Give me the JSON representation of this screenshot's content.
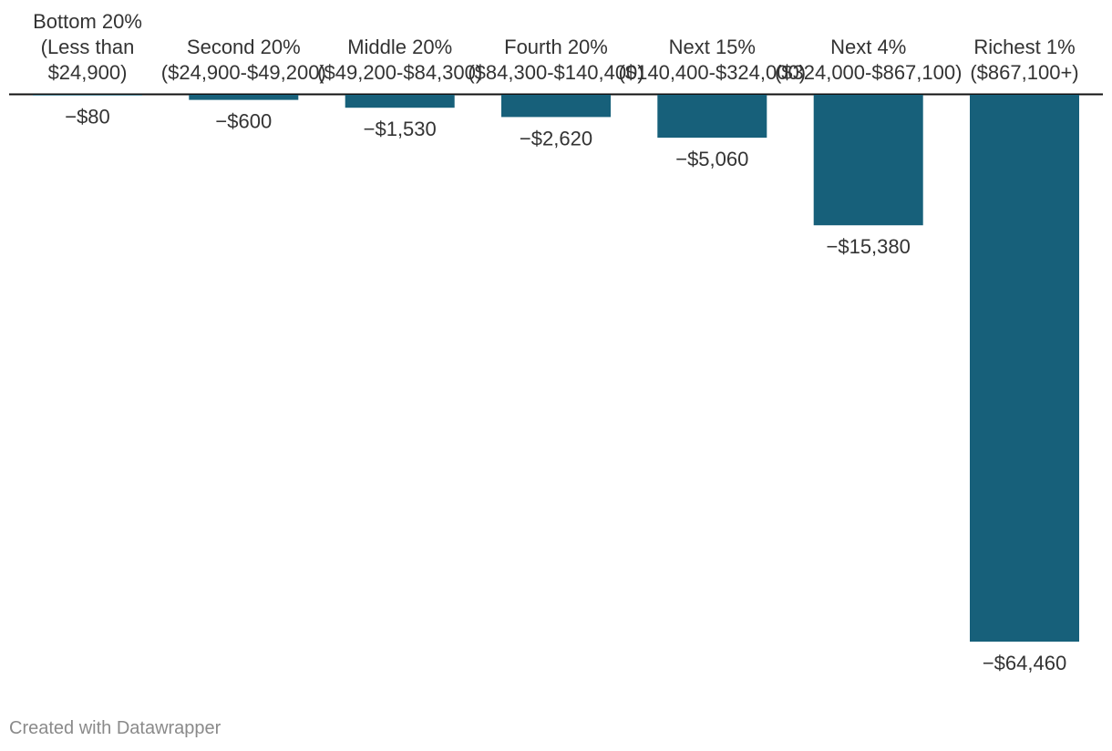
{
  "chart_data": {
    "type": "bar",
    "orientation": "vertical-negative",
    "categories": [
      [
        "Bottom 20%",
        "(Less than",
        "$24,900)"
      ],
      [
        "Second 20%",
        "($24,900-$49,200)"
      ],
      [
        "Middle 20%",
        "($49,200-$84,300)"
      ],
      [
        "Fourth 20%",
        "($84,300-$140,400)"
      ],
      [
        "Next 15%",
        "($140,400-$324,000)"
      ],
      [
        "Next 4%",
        "($324,000-$867,100)"
      ],
      [
        "Richest 1%",
        "($867,100+)"
      ]
    ],
    "values": [
      -80,
      -600,
      -1530,
      -2620,
      -5060,
      -15380,
      -64460
    ],
    "value_labels": [
      "−$80",
      "−$600",
      "−$1,530",
      "−$2,620",
      "−$5,060",
      "−$15,380",
      "−$64,460"
    ],
    "ylim": [
      -64460,
      0
    ],
    "bar_color": "#17607a",
    "axis_color": "#111111",
    "title": "",
    "xlabel": "",
    "ylabel": ""
  },
  "footer": {
    "credit": "Created with Datawrapper"
  }
}
